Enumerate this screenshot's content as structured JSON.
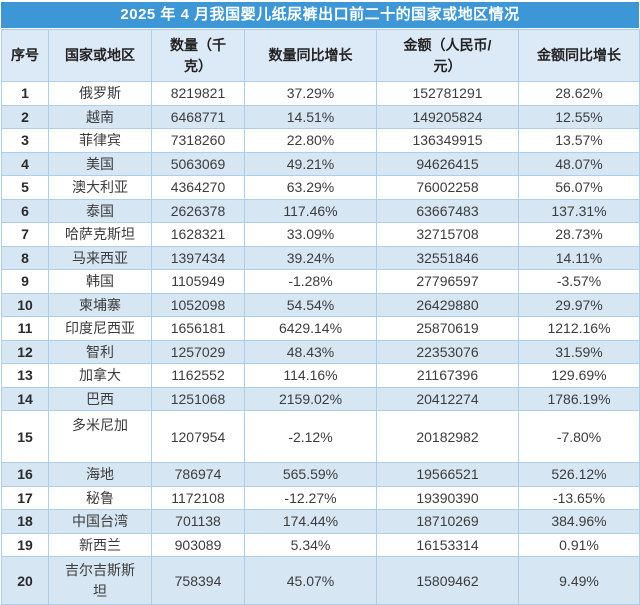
{
  "chart_data": {
    "type": "table",
    "title": "2025 年 4 月我国婴儿纸尿裤出口前二十的国家或地区情况",
    "columns": [
      "序号",
      "国家或地区",
      "数量（千克）",
      "数量同比增长",
      "金额（人民币/元）",
      "金额同比增长"
    ],
    "rows": [
      [
        "1",
        "俄罗斯",
        "8219821",
        "37.29%",
        "152781291",
        "28.62%"
      ],
      [
        "2",
        "越南",
        "6468771",
        "14.51%",
        "149205824",
        "12.55%"
      ],
      [
        "3",
        "菲律宾",
        "7318260",
        "22.80%",
        "136349915",
        "13.57%"
      ],
      [
        "4",
        "美国",
        "5063069",
        "49.21%",
        "94626415",
        "48.07%"
      ],
      [
        "5",
        "澳大利亚",
        "4364270",
        "63.29%",
        "76002258",
        "56.07%"
      ],
      [
        "6",
        "泰国",
        "2626378",
        "117.46%",
        "63667483",
        "137.31%"
      ],
      [
        "7",
        "哈萨克斯坦",
        "1628321",
        "33.09%",
        "32715708",
        "28.73%"
      ],
      [
        "8",
        "马来西亚",
        "1397434",
        "39.24%",
        "32551846",
        "14.11%"
      ],
      [
        "9",
        "韩国",
        "1105949",
        "-1.28%",
        "27796597",
        "-3.57%"
      ],
      [
        "10",
        "柬埔寨",
        "1052098",
        "54.54%",
        "26429880",
        "29.97%"
      ],
      [
        "11",
        "印度尼西亚",
        "1656181",
        "6429.14%",
        "25870619",
        "1212.16%"
      ],
      [
        "12",
        "智利",
        "1257029",
        "48.43%",
        "22353076",
        "31.59%"
      ],
      [
        "13",
        "加拿大",
        "1162552",
        "114.16%",
        "21167396",
        "129.69%"
      ],
      [
        "14",
        "巴西",
        "1251068",
        "2159.02%",
        "20412274",
        "1786.19%"
      ],
      [
        "15",
        "多米尼加",
        "1207954",
        "-2.12%",
        "20182982",
        "-7.80%"
      ],
      [
        "16",
        "海地",
        "786974",
        "565.59%",
        "19566521",
        "526.12%"
      ],
      [
        "17",
        "秘鲁",
        "1172108",
        "-12.27%",
        "19390390",
        "-13.65%"
      ],
      [
        "18",
        "中国台湾",
        "701138",
        "174.44%",
        "18710269",
        "384.96%"
      ],
      [
        "19",
        "新西兰",
        "903089",
        "5.34%",
        "16153314",
        "0.91%"
      ],
      [
        "20",
        "吉尔吉斯斯坦",
        "758394",
        "45.07%",
        "15809462",
        "9.49%"
      ]
    ]
  },
  "colors": {
    "title_bar": "#3D97D6",
    "title_text": "#FFFFFF",
    "header_bg": "#DCE9F6",
    "band_bg": "#D7E6F3",
    "row_bg": "#FFFFFF",
    "grid": "#AECDE8",
    "header_text": "#222222",
    "body_text": "#3C3C3C"
  }
}
